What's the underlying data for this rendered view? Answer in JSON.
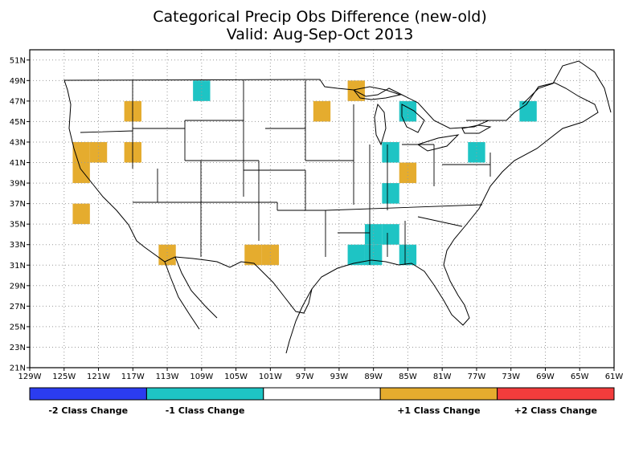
{
  "title": {
    "line1": "Categorical Precip Obs Difference (new-old)",
    "line2": "Valid: Aug-Sep-Oct 2013"
  },
  "axes": {
    "lon_range": [
      -129,
      -61
    ],
    "lat_range": [
      21,
      52
    ],
    "lon_ticks": [
      {
        "value": -129,
        "label": "129W"
      },
      {
        "value": -125,
        "label": "125W"
      },
      {
        "value": -121,
        "label": "121W"
      },
      {
        "value": -117,
        "label": "117W"
      },
      {
        "value": -113,
        "label": "113W"
      },
      {
        "value": -109,
        "label": "109W"
      },
      {
        "value": -105,
        "label": "105W"
      },
      {
        "value": -101,
        "label": "101W"
      },
      {
        "value": -97,
        "label": "97W"
      },
      {
        "value": -93,
        "label": "93W"
      },
      {
        "value": -89,
        "label": "89W"
      },
      {
        "value": -85,
        "label": "85W"
      },
      {
        "value": -81,
        "label": "81W"
      },
      {
        "value": -77,
        "label": "77W"
      },
      {
        "value": -73,
        "label": "73W"
      },
      {
        "value": -69,
        "label": "69W"
      },
      {
        "value": -65,
        "label": "65W"
      },
      {
        "value": -61,
        "label": "61W"
      }
    ],
    "lat_ticks": [
      {
        "value": 21,
        "label": "21N"
      },
      {
        "value": 23,
        "label": "23N"
      },
      {
        "value": 25,
        "label": "25N"
      },
      {
        "value": 27,
        "label": "27N"
      },
      {
        "value": 29,
        "label": "29N"
      },
      {
        "value": 31,
        "label": "31N"
      },
      {
        "value": 33,
        "label": "33N"
      },
      {
        "value": 35,
        "label": "35N"
      },
      {
        "value": 37,
        "label": "37N"
      },
      {
        "value": 39,
        "label": "39N"
      },
      {
        "value": 41,
        "label": "41N"
      },
      {
        "value": 43,
        "label": "43N"
      },
      {
        "value": 45,
        "label": "45N"
      },
      {
        "value": 47,
        "label": "47N"
      },
      {
        "value": 49,
        "label": "49N"
      },
      {
        "value": 51,
        "label": "51N"
      }
    ],
    "grid": true
  },
  "categories": [
    {
      "key": "m2",
      "label": "-2 Class Change",
      "color": "#2b3cf0"
    },
    {
      "key": "m1",
      "label": "-1 Class Change",
      "color": "#1ec4c4"
    },
    {
      "key": "zero",
      "label": "",
      "color": "#ffffff"
    },
    {
      "key": "p1",
      "label": "+1 Class Change",
      "color": "#e5ac2e"
    },
    {
      "key": "p2",
      "label": "+2 Class Change",
      "color": "#f23c3c"
    }
  ],
  "cells": [
    {
      "lon": -109,
      "lat": 48,
      "cat": "m1"
    },
    {
      "lon": -117,
      "lat": 46,
      "cat": "p1"
    },
    {
      "lon": -95,
      "lat": 46,
      "cat": "p1"
    },
    {
      "lon": -91,
      "lat": 48,
      "cat": "p1"
    },
    {
      "lon": -85,
      "lat": 46,
      "cat": "m1"
    },
    {
      "lon": -71,
      "lat": 46,
      "cat": "m1"
    },
    {
      "lon": -123,
      "lat": 42,
      "cat": "p1"
    },
    {
      "lon": -121,
      "lat": 42,
      "cat": "p1"
    },
    {
      "lon": -123,
      "lat": 40,
      "cat": "p1"
    },
    {
      "lon": -117,
      "lat": 42,
      "cat": "p1"
    },
    {
      "lon": -87,
      "lat": 42,
      "cat": "m1"
    },
    {
      "lon": -77,
      "lat": 42,
      "cat": "m1"
    },
    {
      "lon": -85,
      "lat": 40,
      "cat": "p1"
    },
    {
      "lon": -87,
      "lat": 38,
      "cat": "m1"
    },
    {
      "lon": -123,
      "lat": 36,
      "cat": "p1"
    },
    {
      "lon": -89,
      "lat": 34,
      "cat": "m1"
    },
    {
      "lon": -87,
      "lat": 34,
      "cat": "m1"
    },
    {
      "lon": -113,
      "lat": 32,
      "cat": "p1"
    },
    {
      "lon": -103,
      "lat": 32,
      "cat": "p1"
    },
    {
      "lon": -101,
      "lat": 32,
      "cat": "p1"
    },
    {
      "lon": -91,
      "lat": 32,
      "cat": "m1"
    },
    {
      "lon": -89,
      "lat": 32,
      "cat": "m1"
    },
    {
      "lon": -85,
      "lat": 32,
      "cat": "m1"
    }
  ]
}
